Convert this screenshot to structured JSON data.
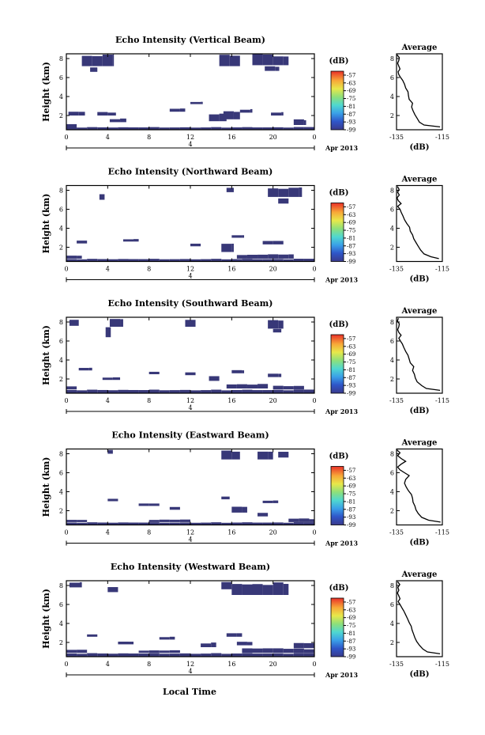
{
  "figure": {
    "xlabel_bottom": "Local Time",
    "date_label": "Apr 2013",
    "avg_title": "Average",
    "avg_xlabel": "(dB)",
    "colorbar_unit": "(dB)"
  },
  "chart_data": [
    {
      "type": "heatmap",
      "title": "Echo Intensity (Vertical Beam)",
      "ylabel": "Height (km)",
      "xticks": [
        "0",
        "4",
        "8",
        "12",
        "16",
        "20",
        "0"
      ],
      "yticks": [
        "2",
        "4",
        "6",
        "8"
      ],
      "xlim": [
        0,
        24
      ],
      "ylim": [
        0.5,
        8.5
      ],
      "day_marker": "4",
      "colorbar_ticks": [
        "-57",
        "-63",
        "-69",
        "-75",
        "-81",
        "-87",
        "-93",
        "-99"
      ],
      "colorbar_range": [
        -99,
        -54
      ],
      "regions": [
        [
          0.0,
          1.0,
          0.6,
          1.1
        ],
        [
          0.0,
          24.0,
          0.5,
          0.8
        ],
        [
          0.2,
          1.8,
          2.0,
          2.4
        ],
        [
          3.0,
          4.8,
          2.0,
          2.4
        ],
        [
          4.2,
          5.8,
          1.3,
          1.7
        ],
        [
          10.0,
          11.5,
          2.4,
          2.8
        ],
        [
          13.8,
          15.5,
          1.4,
          2.2
        ],
        [
          15.2,
          16.8,
          1.6,
          2.6
        ],
        [
          12.0,
          13.2,
          3.2,
          3.5
        ],
        [
          16.8,
          18.0,
          2.3,
          2.7
        ],
        [
          19.8,
          21.0,
          2.0,
          2.4
        ],
        [
          22.0,
          23.2,
          1.0,
          1.6
        ],
        [
          1.5,
          4.6,
          7.2,
          8.5
        ],
        [
          2.3,
          3.0,
          6.6,
          7.2
        ],
        [
          14.8,
          16.8,
          7.2,
          8.5
        ],
        [
          18.0,
          21.5,
          7.3,
          8.5
        ],
        [
          19.2,
          20.6,
          6.7,
          7.2
        ]
      ],
      "average": {
        "xlim": [
          -135,
          -115
        ],
        "xticks": [
          "-135",
          "-115"
        ],
        "ylim": [
          0.5,
          8.5
        ],
        "yticks": [
          "2",
          "4",
          "6",
          "8"
        ],
        "x": [
          -116.0,
          -123.0,
          -125.0,
          -126.0,
          -127.0,
          -127.8,
          -128.4,
          -128.0,
          -129.5,
          -129.8,
          -130.0,
          -131.0,
          -131.5,
          -132.3,
          -133.2,
          -134.0,
          -134.3,
          -133.5,
          -134.0,
          -134.5,
          -134.0,
          -133.8,
          -134.8
        ],
        "y": [
          0.8,
          1.0,
          1.3,
          1.7,
          2.1,
          2.5,
          2.9,
          3.3,
          3.7,
          4.1,
          4.5,
          4.9,
          5.3,
          5.7,
          6.0,
          6.3,
          6.6,
          6.9,
          7.2,
          7.5,
          7.8,
          8.1,
          8.4
        ]
      }
    },
    {
      "type": "heatmap",
      "title": "Echo Intensity (Northward Beam)",
      "ylabel": "Height (km)",
      "xticks": [
        "0",
        "4",
        "8",
        "12",
        "16",
        "20",
        "0"
      ],
      "yticks": [
        "2",
        "4",
        "6",
        "8"
      ],
      "xlim": [
        0,
        24
      ],
      "ylim": [
        0.5,
        8.5
      ],
      "day_marker": "4",
      "colorbar_ticks": [
        "-57",
        "-63",
        "-69",
        "-75",
        "-81",
        "-87",
        "-93",
        "-99"
      ],
      "colorbar_range": [
        -99,
        -54
      ],
      "regions": [
        [
          0.0,
          24.0,
          0.5,
          0.8
        ],
        [
          0.0,
          1.5,
          0.8,
          1.2
        ],
        [
          16.5,
          22.0,
          0.8,
          1.3
        ],
        [
          15.0,
          16.2,
          1.5,
          2.4
        ],
        [
          5.5,
          7.0,
          2.6,
          2.9
        ],
        [
          12.0,
          13.0,
          2.1,
          2.4
        ],
        [
          19.0,
          21.0,
          2.3,
          2.7
        ],
        [
          1.0,
          2.0,
          2.4,
          2.7
        ],
        [
          16.0,
          17.2,
          3.0,
          3.3
        ],
        [
          19.5,
          22.8,
          7.3,
          8.4
        ],
        [
          20.5,
          21.5,
          6.6,
          7.2
        ],
        [
          15.5,
          16.2,
          7.8,
          8.4
        ],
        [
          3.2,
          3.7,
          7.0,
          7.6
        ]
      ],
      "average": {
        "xlim": [
          -135,
          -115
        ],
        "xticks": [
          "-135",
          "-115"
        ],
        "ylim": [
          0.5,
          8.5
        ],
        "yticks": [
          "2",
          "4",
          "6",
          "8"
        ],
        "x": [
          -116.5,
          -120.0,
          -123.0,
          -124.5,
          -125.5,
          -126.5,
          -127.5,
          -128.0,
          -129.0,
          -129.3,
          -130.5,
          -131.5,
          -132.2,
          -133.0,
          -133.5,
          -134.5,
          -133.0,
          -134.2,
          -134.8,
          -133.8,
          -134.5,
          -133.9,
          -134.6
        ],
        "y": [
          0.8,
          1.0,
          1.3,
          1.7,
          2.1,
          2.5,
          2.9,
          3.3,
          3.7,
          4.1,
          4.5,
          4.9,
          5.3,
          5.7,
          6.0,
          6.3,
          6.6,
          6.9,
          7.2,
          7.5,
          7.8,
          8.1,
          8.4
        ]
      }
    },
    {
      "type": "heatmap",
      "title": "Echo Intensity (Southward Beam)",
      "ylabel": "Height (km)",
      "xticks": [
        "0",
        "4",
        "8",
        "12",
        "16",
        "20",
        "0"
      ],
      "yticks": [
        "2",
        "4",
        "6",
        "8"
      ],
      "xlim": [
        0,
        24
      ],
      "ylim": [
        0.5,
        8.5
      ],
      "day_marker": "4",
      "colorbar_ticks": [
        "-57",
        "-63",
        "-69",
        "-75",
        "-81",
        "-87",
        "-93",
        "-99"
      ],
      "colorbar_range": [
        -99,
        -54
      ],
      "regions": [
        [
          0.0,
          24.0,
          0.5,
          0.9
        ],
        [
          0.0,
          1.0,
          0.9,
          1.3
        ],
        [
          20.0,
          23.0,
          0.9,
          1.3
        ],
        [
          15.5,
          19.5,
          1.0,
          1.5
        ],
        [
          3.5,
          5.2,
          1.9,
          2.2
        ],
        [
          13.8,
          14.8,
          1.8,
          2.3
        ],
        [
          8.0,
          9.0,
          2.5,
          2.8
        ],
        [
          11.5,
          12.5,
          2.4,
          2.7
        ],
        [
          16.0,
          17.2,
          2.6,
          3.0
        ],
        [
          19.5,
          20.8,
          2.2,
          2.6
        ],
        [
          1.2,
          2.5,
          2.9,
          3.2
        ],
        [
          4.2,
          5.5,
          7.5,
          8.4
        ],
        [
          0.3,
          1.2,
          7.6,
          8.4
        ],
        [
          11.5,
          12.5,
          7.5,
          8.4
        ],
        [
          19.5,
          21.0,
          7.3,
          8.4
        ],
        [
          20.0,
          20.8,
          6.9,
          7.3
        ],
        [
          3.8,
          4.3,
          6.4,
          7.5
        ]
      ],
      "average": {
        "xlim": [
          -135,
          -115
        ],
        "xticks": [
          "-135",
          "-115"
        ],
        "ylim": [
          0.5,
          8.5
        ],
        "yticks": [
          "2",
          "4",
          "6",
          "8"
        ],
        "x": [
          -116.0,
          -122.0,
          -124.0,
          -126.0,
          -126.8,
          -127.2,
          -128.0,
          -127.5,
          -129.0,
          -129.5,
          -130.0,
          -131.0,
          -131.8,
          -132.5,
          -133.3,
          -134.0,
          -133.0,
          -134.0,
          -134.5,
          -134.0,
          -133.8,
          -134.6,
          -134.2
        ],
        "y": [
          0.8,
          1.0,
          1.3,
          1.7,
          2.1,
          2.5,
          2.9,
          3.3,
          3.7,
          4.1,
          4.5,
          4.9,
          5.3,
          5.7,
          6.0,
          6.3,
          6.6,
          6.9,
          7.2,
          7.5,
          7.8,
          8.1,
          8.4
        ]
      }
    },
    {
      "type": "heatmap",
      "title": "Echo Intensity (Eastward Beam)",
      "ylabel": "Height (km)",
      "xticks": [
        "0",
        "4",
        "8",
        "12",
        "16",
        "20",
        "0"
      ],
      "yticks": [
        "2",
        "4",
        "6",
        "8"
      ],
      "xlim": [
        0,
        24
      ],
      "ylim": [
        0.5,
        8.5
      ],
      "day_marker": "4",
      "colorbar_ticks": [
        "-57",
        "-63",
        "-69",
        "-75",
        "-81",
        "-87",
        "-93",
        "-99"
      ],
      "colorbar_range": [
        -99,
        -54
      ],
      "regions": [
        [
          0.0,
          24.0,
          0.5,
          0.8
        ],
        [
          0.0,
          2.0,
          0.8,
          1.1
        ],
        [
          8.0,
          12.0,
          0.8,
          1.1
        ],
        [
          21.5,
          24.0,
          0.8,
          1.2
        ],
        [
          7.0,
          9.0,
          2.5,
          2.8
        ],
        [
          10.0,
          11.0,
          2.1,
          2.4
        ],
        [
          16.0,
          17.5,
          1.8,
          2.5
        ],
        [
          18.5,
          19.5,
          1.4,
          1.8
        ],
        [
          4.0,
          5.0,
          3.0,
          3.3
        ],
        [
          15.0,
          15.8,
          3.2,
          3.5
        ],
        [
          19.0,
          20.5,
          2.8,
          3.1
        ],
        [
          15.0,
          16.8,
          7.4,
          8.4
        ],
        [
          18.5,
          20.0,
          7.4,
          8.4
        ],
        [
          20.5,
          21.5,
          7.6,
          8.4
        ],
        [
          4.0,
          4.5,
          8.0,
          8.4
        ]
      ],
      "average": {
        "xlim": [
          -135,
          -115
        ],
        "xticks": [
          "-135",
          "-115"
        ],
        "ylim": [
          0.5,
          8.5
        ],
        "yticks": [
          "2",
          "4",
          "6",
          "8"
        ],
        "x": [
          -115.8,
          -121.0,
          -124.0,
          -125.5,
          -126.5,
          -127.0,
          -127.8,
          -128.0,
          -128.5,
          -129.8,
          -130.8,
          -131.5,
          -131.0,
          -129.5,
          -131.5,
          -133.5,
          -134.5,
          -133.0,
          -131.0,
          -133.0,
          -134.5,
          -133.5,
          -134.8
        ],
        "y": [
          0.8,
          1.0,
          1.3,
          1.7,
          2.1,
          2.5,
          2.9,
          3.3,
          3.7,
          4.1,
          4.5,
          4.9,
          5.3,
          5.7,
          6.0,
          6.3,
          6.6,
          6.9,
          7.2,
          7.5,
          7.8,
          8.1,
          8.4
        ]
      }
    },
    {
      "type": "heatmap",
      "title": "Echo Intensity (Westward Beam)",
      "ylabel": "Height (km)",
      "xticks": [
        "0",
        "4",
        "8",
        "12",
        "16",
        "20",
        "0"
      ],
      "yticks": [
        "2",
        "4",
        "6",
        "8"
      ],
      "xlim": [
        0,
        24
      ],
      "ylim": [
        0.5,
        8.5
      ],
      "day_marker": "4",
      "colorbar_ticks": [
        "-57",
        "-63",
        "-69",
        "-75",
        "-81",
        "-87",
        "-93",
        "-99"
      ],
      "colorbar_range": [
        -99,
        -54
      ],
      "regions": [
        [
          0.0,
          24.0,
          0.5,
          0.9
        ],
        [
          0.0,
          2.0,
          0.9,
          1.3
        ],
        [
          7.0,
          11.0,
          0.9,
          1.2
        ],
        [
          17.0,
          24.0,
          0.9,
          1.4
        ],
        [
          22.0,
          24.0,
          1.4,
          2.0
        ],
        [
          5.0,
          6.5,
          1.8,
          2.1
        ],
        [
          13.0,
          14.5,
          1.5,
          2.0
        ],
        [
          16.5,
          18.0,
          1.7,
          2.1
        ],
        [
          9.0,
          10.5,
          2.3,
          2.6
        ],
        [
          2.0,
          3.0,
          2.6,
          2.9
        ],
        [
          15.5,
          17.0,
          2.6,
          3.0
        ],
        [
          16.0,
          21.5,
          7.0,
          8.4
        ],
        [
          15.0,
          16.0,
          7.6,
          8.4
        ],
        [
          4.0,
          5.0,
          7.3,
          7.9
        ],
        [
          0.3,
          1.5,
          7.8,
          8.4
        ]
      ],
      "average": {
        "xlim": [
          -135,
          -115
        ],
        "xticks": [
          "-135",
          "-115"
        ],
        "ylim": [
          0.5,
          8.5
        ],
        "yticks": [
          "2",
          "4",
          "6",
          "8"
        ],
        "x": [
          -116.0,
          -121.5,
          -123.5,
          -125.0,
          -126.2,
          -127.0,
          -127.6,
          -128.2,
          -128.6,
          -129.5,
          -130.2,
          -131.0,
          -131.8,
          -132.8,
          -133.5,
          -134.3,
          -133.5,
          -134.0,
          -134.6,
          -134.0,
          -134.4,
          -133.6,
          -134.5
        ],
        "y": [
          0.8,
          1.0,
          1.3,
          1.7,
          2.1,
          2.5,
          2.9,
          3.3,
          3.7,
          4.1,
          4.5,
          4.9,
          5.3,
          5.7,
          6.0,
          6.3,
          6.6,
          6.9,
          7.2,
          7.5,
          7.8,
          8.1,
          8.4
        ]
      }
    }
  ]
}
